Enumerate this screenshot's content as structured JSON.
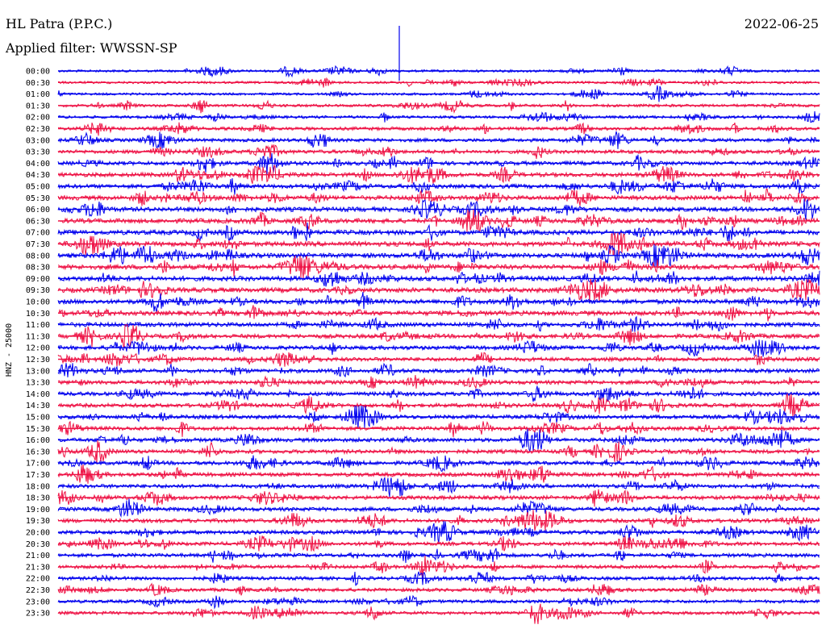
{
  "header": {
    "station": "HL Patra (P.P.C.)",
    "filter_label": "Applied filter: WWSSN-SP",
    "date": "2022-06-25"
  },
  "channel_label": "HNZ - 25000",
  "colors": {
    "trace_a": "#0000ee",
    "trace_b": "#ee1144",
    "background": "#ffffff",
    "text": "#000000"
  },
  "chart_data": {
    "type": "line",
    "title": "HL Patra (P.P.C.)",
    "subtitle": "Applied filter: WWSSN-SP",
    "ylabel": "HNZ - 25000",
    "rows": [
      "00:00",
      "00:30",
      "01:00",
      "01:30",
      "02:00",
      "02:30",
      "03:00",
      "03:30",
      "04:00",
      "04:30",
      "05:00",
      "05:30",
      "06:00",
      "06:30",
      "07:00",
      "07:30",
      "08:00",
      "08:30",
      "09:00",
      "09:30",
      "10:00",
      "10:30",
      "11:00",
      "11:30",
      "12:00",
      "12:30",
      "13:00",
      "13:30",
      "14:00",
      "14:30",
      "15:00",
      "15:30",
      "16:00",
      "16:30",
      "17:00",
      "17:30",
      "18:00",
      "18:30",
      "19:00",
      "19:30",
      "20:00",
      "20:30",
      "21:00",
      "21:30",
      "22:00",
      "22:30",
      "23:00",
      "23:30"
    ],
    "row_amplitude": [
      0.2,
      0.2,
      0.2,
      0.3,
      0.3,
      0.4,
      0.45,
      0.5,
      0.55,
      0.6,
      0.6,
      0.65,
      0.7,
      0.7,
      0.75,
      0.75,
      0.75,
      0.75,
      0.75,
      0.75,
      0.7,
      0.7,
      0.65,
      0.6,
      0.6,
      0.55,
      0.55,
      0.55,
      0.55,
      0.55,
      0.55,
      0.55,
      0.55,
      0.55,
      0.55,
      0.55,
      0.55,
      0.55,
      0.55,
      0.55,
      0.55,
      0.5,
      0.5,
      0.45,
      0.45,
      0.45,
      0.4,
      0.4
    ],
    "row_colors": "alternating blue/red",
    "grid": false
  }
}
